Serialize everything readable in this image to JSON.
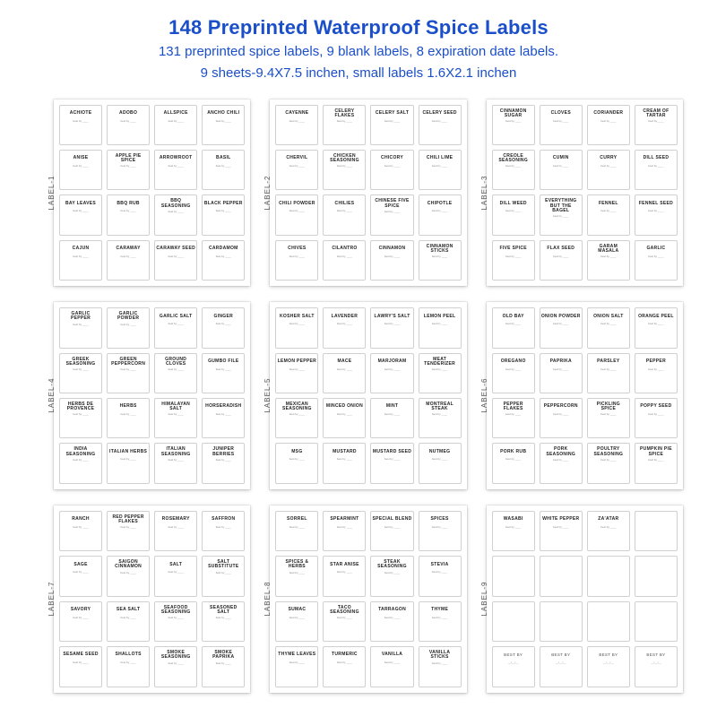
{
  "header": {
    "title": "148 Preprinted Waterproof Spice Labels",
    "line1": "131 preprinted spice labels, 9 blank labels, 8 expiration date labels.",
    "line2": "9 sheets-9.4X7.5 inchen, small labels 1.6X2.1 inchen"
  },
  "subtext": "BEST\nBY _____",
  "sheets": [
    {
      "tag": "LABEL-1",
      "cells": [
        "ACHIOTE",
        "ADOBO",
        "ALLSPICE",
        "ANCHO CHILI",
        "ANISE",
        "APPLE PIE SPICE",
        "ARROWROOT",
        "BASIL",
        "BAY LEAVES",
        "BBQ RUB",
        "BBQ SEASONING",
        "BLACK PEPPER",
        "CAJUN",
        "CARAWAY",
        "CARAWAY SEED",
        "CARDAMOM"
      ]
    },
    {
      "tag": "LABEL-2",
      "cells": [
        "CAYENNE",
        "CELERY FLAKES",
        "CELERY SALT",
        "CELERY SEED",
        "CHERVIL",
        "CHICKEN SEASONING",
        "CHICORY",
        "CHILI LIME",
        "CHILI POWDER",
        "CHILIES",
        "CHINESE FIVE SPICE",
        "CHIPOTLE",
        "CHIVES",
        "CILANTRO",
        "CINNAMON",
        "CINNAMON STICKS"
      ]
    },
    {
      "tag": "LABEL-3",
      "cells": [
        "CINNAMON SUGAR",
        "CLOVES",
        "CORIANDER",
        "CREAM OF TARTAR",
        "CREOLE SEASONING",
        "CUMIN",
        "CURRY",
        "DILL SEED",
        "DILL WEED",
        "EVERYTHING BUT THE BAGEL",
        "FENNEL",
        "FENNEL SEED",
        "FIVE SPICE",
        "FLAX SEED",
        "GARAM MASALA",
        "GARLIC"
      ]
    },
    {
      "tag": "LABEL-4",
      "cells": [
        "GARLIC PEPPER",
        "GARLIC POWDER",
        "GARLIC SALT",
        "GINGER",
        "GREEK SEASONING",
        "GREEN PEPPERCORN",
        "GROUND CLOVES",
        "GUMBO FILE",
        "HERBS DE PROVENCE",
        "HERBS",
        "HIMALAYAN SALT",
        "HORSERADISH",
        "INDIA SEASONING",
        "ITALIAN HERBS",
        "ITALIAN SEASONING",
        "JUNIPER BERRIES"
      ]
    },
    {
      "tag": "LABEL-5",
      "cells": [
        "KOSHER SALT",
        "LAVENDER",
        "LAWRY'S SALT",
        "LEMON PEEL",
        "LEMON PEPPER",
        "MACE",
        "MARJORAM",
        "MEAT TENDERIZER",
        "MEXICAN SEASONING",
        "MINCED ONION",
        "MINT",
        "MONTREAL STEAK",
        "MSG",
        "MUSTARD",
        "MUSTARD SEED",
        "NUTMEG"
      ]
    },
    {
      "tag": "LABEL-6",
      "cells": [
        "OLD BAY",
        "ONION POWDER",
        "ONION SALT",
        "ORANGE PEEL",
        "OREGANO",
        "PAPRIKA",
        "PARSLEY",
        "PEPPER",
        "PEPPER FLAKES",
        "PEPPERCORN",
        "PICKLING SPICE",
        "POPPY SEED",
        "PORK RUB",
        "PORK SEASONING",
        "POULTRY SEASONING",
        "PUMPKIN PIE SPICE"
      ]
    },
    {
      "tag": "LABEL-7",
      "cells": [
        "RANCH",
        "RED PEPPER FLAKES",
        "ROSEMARY",
        "SAFFRON",
        "SAGE",
        "SAIGON CINNAMON",
        "SALT",
        "SALT SUBSTITUTE",
        "SAVORY",
        "SEA SALT",
        "SEAFOOD SEASONING",
        "SEASONED SALT",
        "SESAME SEED",
        "SHALLOTS",
        "SMOKE SEASONING",
        "SMOKE PAPRIKA"
      ]
    },
    {
      "tag": "LABEL-8",
      "cells": [
        "SORREL",
        "SPEARMINT",
        "SPECIAL BLEND",
        "SPICES",
        "SPICES & HERBS",
        "STAR ANISE",
        "STEAK SEASONING",
        "STEVIA",
        "SUMAC",
        "TACO SEASONING",
        "TARRAGON",
        "THYME",
        "THYME LEAVES",
        "TURMERIC",
        "VANILLA",
        "VANILLA STICKS"
      ]
    },
    {
      "tag": "LABEL-9",
      "cells": [
        "WASABI",
        "WHITE PEPPER",
        "ZA'ATAR",
        "",
        "",
        "",
        "",
        "",
        "",
        "",
        "",
        "",
        "BEST BY",
        "BEST BY",
        "BEST BY",
        "BEST BY"
      ]
    }
  ]
}
